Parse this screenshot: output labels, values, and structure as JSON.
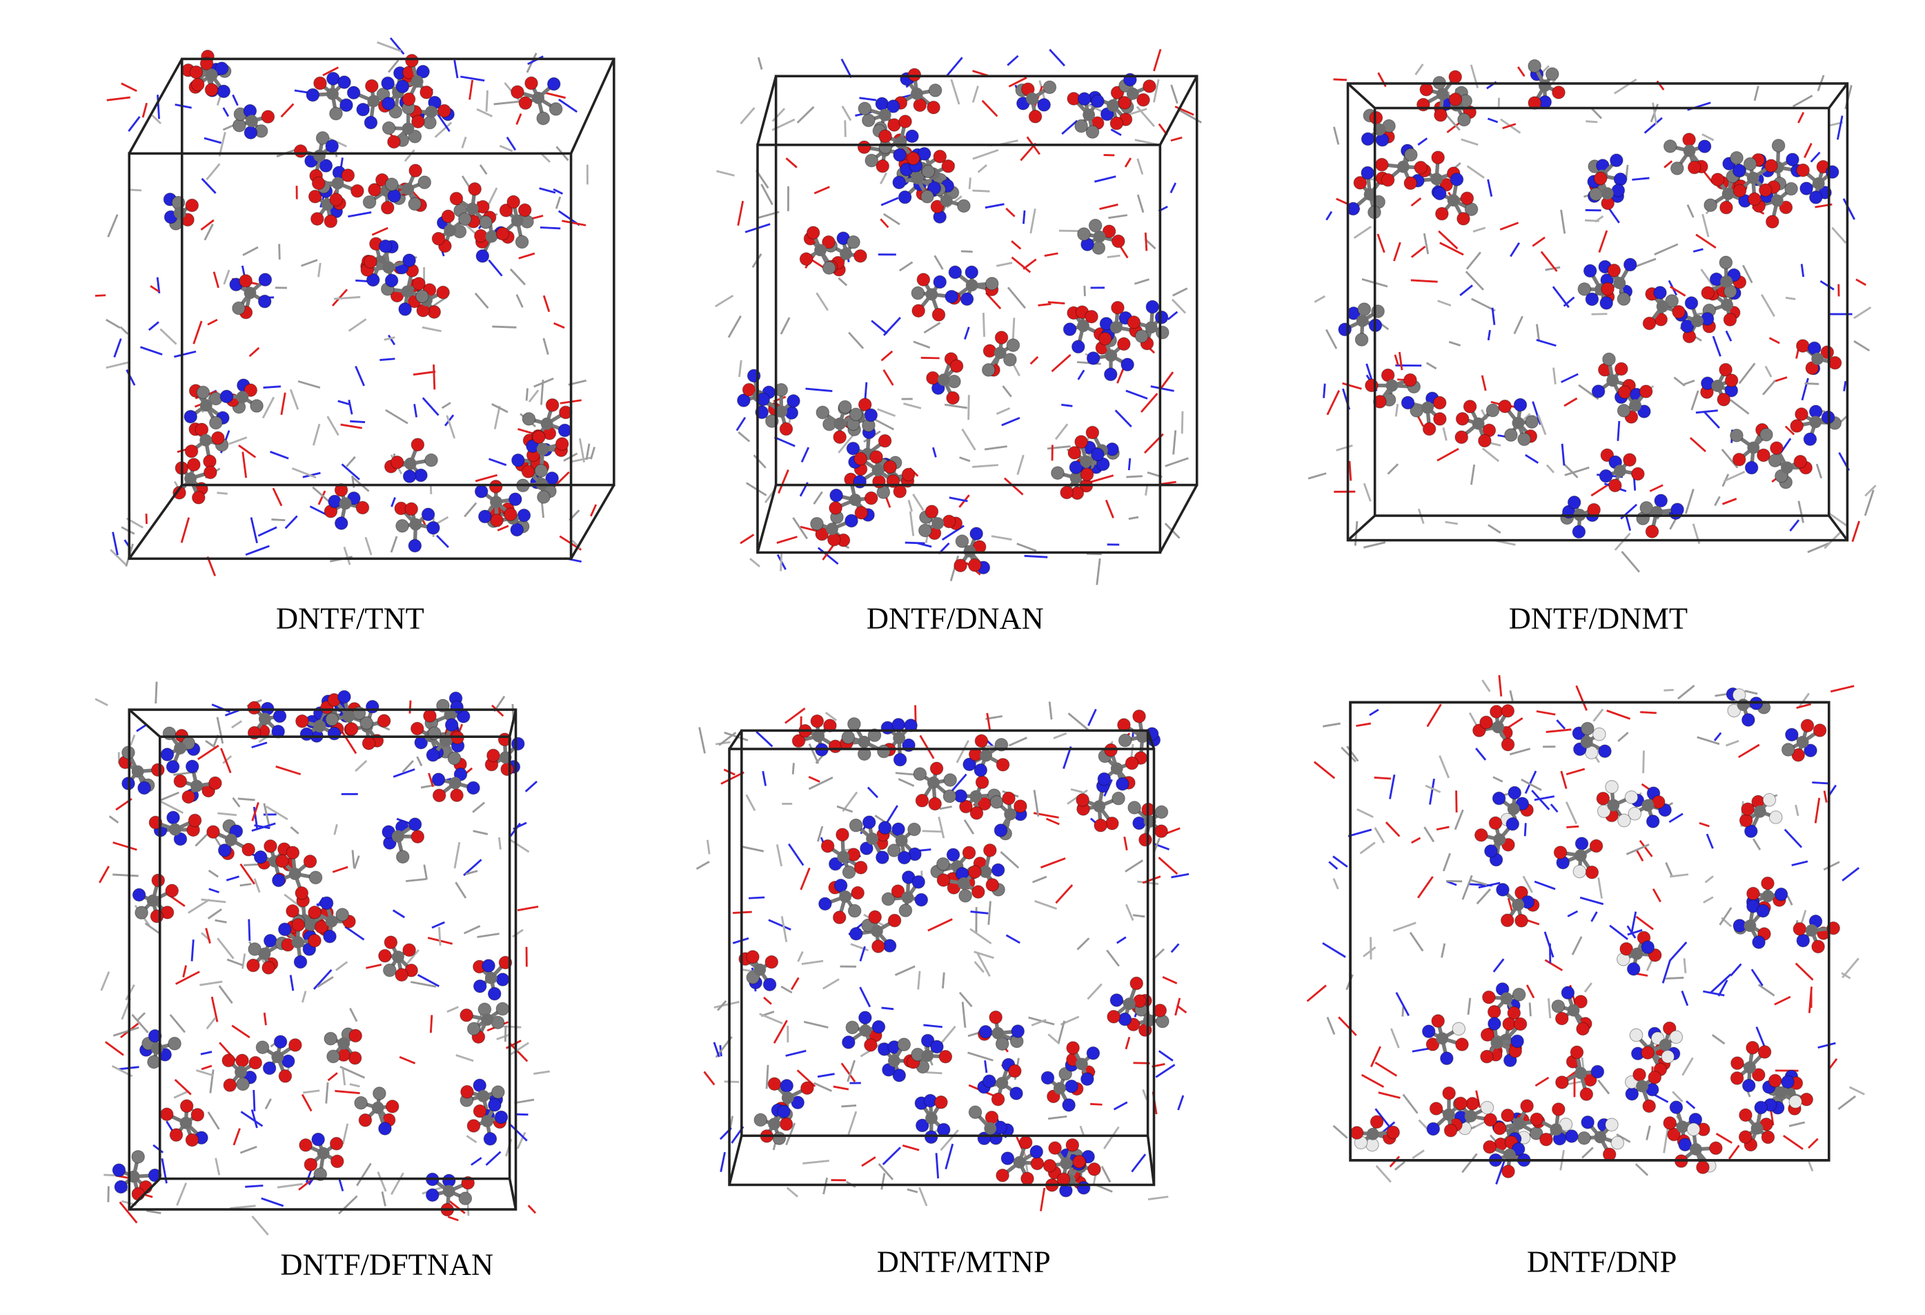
{
  "panels": [
    {
      "label": "DNTF/TNT"
    },
    {
      "label": "DNTF/DNAN"
    },
    {
      "label": "DNTF/DNMT"
    },
    {
      "label": "DNTF/DFTNAN"
    },
    {
      "label": "DNTF/MTNP"
    },
    {
      "label": "DNTF/DNP"
    }
  ]
}
